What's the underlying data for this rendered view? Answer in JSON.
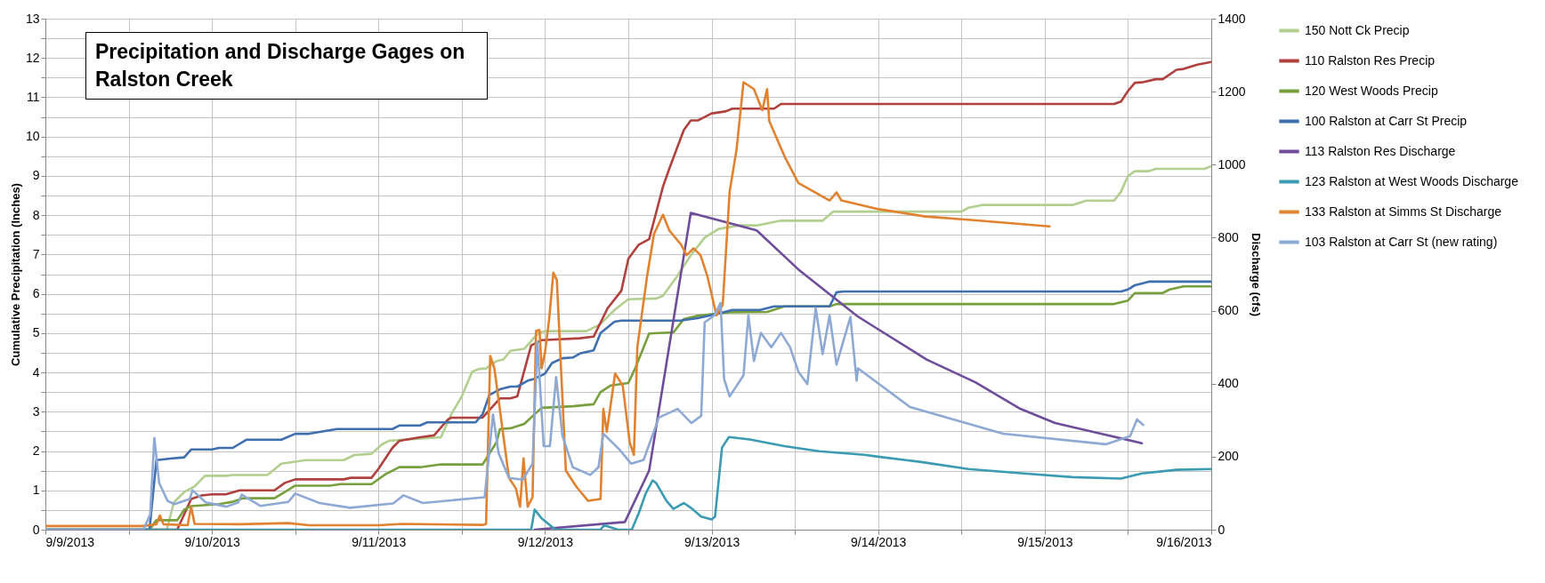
{
  "chart_data": {
    "type": "line",
    "title": "Precipitation and Discharge Gages on Ralston Creek",
    "ylabel": "Cumulative Precipitation (Inches)",
    "y2label": "Discharge (cfs)",
    "xlim": [
      "2013-09-09T00:00",
      "2013-09-16T00:00"
    ],
    "xticks": [
      {
        "value": "2013-09-09T00:00",
        "label": "9/9/2013"
      },
      {
        "value": "2013-09-09T12:00",
        "label": null
      },
      {
        "value": "2013-09-10T00:00",
        "label": "9/10/2013"
      },
      {
        "value": "2013-09-10T12:00",
        "label": null
      },
      {
        "value": "2013-09-11T00:00",
        "label": "9/11/2013"
      },
      {
        "value": "2013-09-11T12:00",
        "label": null
      },
      {
        "value": "2013-09-12T00:00",
        "label": "9/12/2013"
      },
      {
        "value": "2013-09-12T12:00",
        "label": null
      },
      {
        "value": "2013-09-13T00:00",
        "label": "9/13/2013"
      },
      {
        "value": "2013-09-13T12:00",
        "label": null
      },
      {
        "value": "2013-09-14T00:00",
        "label": "9/14/2013"
      },
      {
        "value": "2013-09-14T12:00",
        "label": null
      },
      {
        "value": "2013-09-15T00:00",
        "label": "9/15/2013"
      },
      {
        "value": "2013-09-15T12:00",
        "label": null
      },
      {
        "value": "2013-09-16T00:00",
        "label": "9/16/2013"
      }
    ],
    "ylim": [
      0,
      13
    ],
    "yticks": [
      0,
      {
        "value": 0.5,
        "label": null
      },
      1,
      {
        "value": 1.5,
        "label": null
      },
      2,
      {
        "value": 2.5,
        "label": null
      },
      3,
      {
        "value": 3.5,
        "label": null
      },
      4,
      {
        "value": 4.5,
        "label": null
      },
      5,
      {
        "value": 5.5,
        "label": null
      },
      6,
      {
        "value": 6.5,
        "label": null
      },
      7,
      {
        "value": 7.5,
        "label": null
      },
      8,
      {
        "value": 8.5,
        "label": null
      },
      9,
      {
        "value": 9.5,
        "label": null
      },
      10,
      {
        "value": 10.5,
        "label": null
      },
      11,
      {
        "value": 11.5,
        "label": null
      },
      12,
      {
        "value": 12.5,
        "label": null
      },
      13
    ],
    "y2lim": [
      0,
      1400
    ],
    "y2ticks": [
      0,
      200,
      400,
      600,
      800,
      1000,
      1200,
      1400
    ],
    "grid": true,
    "legend": "right",
    "series": [
      {
        "name": "150 Nott Ck Precip",
        "color": "#b3cf8f",
        "x": [
          "2013-09-09T00:00",
          "2013-09-09T17:30",
          "2013-09-09T18:30",
          "2013-09-09T20:00",
          "2013-09-09T21:30",
          "2013-09-09T23:00",
          "2013-09-10T02:00",
          "2013-09-10T03:00",
          "2013-09-10T08:00",
          "2013-09-10T10:00",
          "2013-09-10T12:00",
          "2013-09-10T13:30",
          "2013-09-10T19:00",
          "2013-09-10T20:30",
          "2013-09-10T23:00",
          "2013-09-11T00:30",
          "2013-09-11T01:30",
          "2013-09-11T09:00",
          "2013-09-11T10:30",
          "2013-09-11T12:00",
          "2013-09-11T13:30",
          "2013-09-11T14:30",
          "2013-09-11T15:30",
          "2013-09-11T17:00",
          "2013-09-11T18:00",
          "2013-09-11T19:00",
          "2013-09-11T21:00",
          "2013-09-11T23:00",
          "2013-09-12T00:00",
          "2013-09-12T06:00",
          "2013-09-12T08:00",
          "2013-09-12T10:00",
          "2013-09-12T12:00",
          "2013-09-12T16:00",
          "2013-09-12T17:00",
          "2013-09-12T19:00",
          "2013-09-12T21:00",
          "2013-09-12T23:00",
          "2013-09-13T01:00",
          "2013-09-13T04:00",
          "2013-09-13T06:30",
          "2013-09-13T10:00",
          "2013-09-13T16:00",
          "2013-09-13T17:30",
          "2013-09-14T12:00",
          "2013-09-14T13:00",
          "2013-09-14T15:00",
          "2013-09-15T04:00",
          "2013-09-15T06:00",
          "2013-09-15T10:00",
          "2013-09-15T11:00",
          "2013-09-15T12:00",
          "2013-09-15T13:00",
          "2013-09-15T15:00",
          "2013-09-15T16:00",
          "2013-09-15T23:00",
          "2013-09-16T00:00"
        ],
        "values": [
          0,
          0,
          0.69,
          0.96,
          1.1,
          1.37,
          1.37,
          1.39,
          1.39,
          1.68,
          1.73,
          1.77,
          1.77,
          1.9,
          1.93,
          2.17,
          2.26,
          2.35,
          2.94,
          3.39,
          4.02,
          4.09,
          4.1,
          4.29,
          4.33,
          4.55,
          4.6,
          5.0,
          5.05,
          5.05,
          5.23,
          5.59,
          5.86,
          5.88,
          5.95,
          6.44,
          6.98,
          7.43,
          7.65,
          7.74,
          7.74,
          7.86,
          7.86,
          8.09,
          8.09,
          8.19,
          8.26,
          8.26,
          8.37,
          8.37,
          8.6,
          9.0,
          9.12,
          9.12,
          9.18,
          9.18,
          9.25
        ]
      },
      {
        "name": "110 Ralston Res Precip",
        "color": "#b0413e",
        "x": [
          "2013-09-09T00:00",
          "2013-09-09T19:00",
          "2013-09-09T21:00",
          "2013-09-09T22:30",
          "2013-09-10T00:00",
          "2013-09-10T02:00",
          "2013-09-10T04:00",
          "2013-09-10T09:00",
          "2013-09-10T10:30",
          "2013-09-10T12:00",
          "2013-09-10T19:00",
          "2013-09-10T20:00",
          "2013-09-10T23:00",
          "2013-09-11T00:00",
          "2013-09-11T02:00",
          "2013-09-11T03:00",
          "2013-09-11T06:00",
          "2013-09-11T08:00",
          "2013-09-11T10:00",
          "2013-09-11T10:30",
          "2013-09-11T15:00",
          "2013-09-11T17:30",
          "2013-09-11T19:00",
          "2013-09-11T20:00",
          "2013-09-11T22:00",
          "2013-09-11T23:30",
          "2013-09-12T05:00",
          "2013-09-12T07:00",
          "2013-09-12T09:00",
          "2013-09-12T11:00",
          "2013-09-12T12:00",
          "2013-09-12T13:30",
          "2013-09-12T15:00",
          "2013-09-12T17:00",
          "2013-09-12T18:00",
          "2013-09-12T20:00",
          "2013-09-12T21:00",
          "2013-09-12T22:00",
          "2013-09-13T00:00",
          "2013-09-13T02:00",
          "2013-09-13T03:00",
          "2013-09-13T09:00",
          "2013-09-13T10:00",
          "2013-09-15T10:00",
          "2013-09-15T11:00",
          "2013-09-15T12:00",
          "2013-09-15T13:00",
          "2013-09-15T14:00",
          "2013-09-15T16:00",
          "2013-09-15T17:00",
          "2013-09-15T19:00",
          "2013-09-15T20:00",
          "2013-09-15T22:00",
          "2013-09-16T00:00"
        ],
        "values": [
          0,
          0,
          0.78,
          0.87,
          0.9,
          0.9,
          1.0,
          1.0,
          1.19,
          1.28,
          1.28,
          1.32,
          1.32,
          1.55,
          2.08,
          2.26,
          2.35,
          2.4,
          2.8,
          2.85,
          2.85,
          3.34,
          3.34,
          3.39,
          4.69,
          4.82,
          4.87,
          4.91,
          5.63,
          6.08,
          6.89,
          7.25,
          7.39,
          8.73,
          9.23,
          10.17,
          10.41,
          10.41,
          10.59,
          10.64,
          10.71,
          10.71,
          10.83,
          10.83,
          10.89,
          11.16,
          11.37,
          11.38,
          11.46,
          11.46,
          11.7,
          11.72,
          11.83,
          11.9
        ]
      },
      {
        "name": "120 West Woods Precip",
        "color": "#77a03c",
        "x": [
          "2013-09-09T00:00",
          "2013-09-09T15:00",
          "2013-09-09T16:00",
          "2013-09-09T19:00",
          "2013-09-09T20:00",
          "2013-09-09T21:00",
          "2013-09-10T01:00",
          "2013-09-10T03:00",
          "2013-09-10T04:30",
          "2013-09-10T09:00",
          "2013-09-10T10:30",
          "2013-09-10T12:00",
          "2013-09-10T17:00",
          "2013-09-10T18:30",
          "2013-09-10T23:00",
          "2013-09-11T01:00",
          "2013-09-11T03:00",
          "2013-09-11T06:00",
          "2013-09-11T09:00",
          "2013-09-11T15:00",
          "2013-09-11T17:00",
          "2013-09-11T17:30",
          "2013-09-11T19:00",
          "2013-09-11T21:00",
          "2013-09-11T23:30",
          "2013-09-12T04:00",
          "2013-09-12T07:00",
          "2013-09-12T08:00",
          "2013-09-12T09:30",
          "2013-09-12T12:00",
          "2013-09-12T13:00",
          "2013-09-12T15:00",
          "2013-09-12T18:30",
          "2013-09-12T20:00",
          "2013-09-12T22:00",
          "2013-09-13T02:30",
          "2013-09-13T08:00",
          "2013-09-13T10:30",
          "2013-09-13T17:00",
          "2013-09-13T18:00",
          "2013-09-15T10:00",
          "2013-09-15T12:00",
          "2013-09-15T13:00",
          "2013-09-15T17:00",
          "2013-09-15T18:00",
          "2013-09-15T20:00",
          "2013-09-16T00:00"
        ],
        "values": [
          0,
          0,
          0.24,
          0.24,
          0.51,
          0.6,
          0.65,
          0.71,
          0.8,
          0.8,
          0.96,
          1.12,
          1.12,
          1.16,
          1.16,
          1.41,
          1.59,
          1.59,
          1.66,
          1.66,
          2.22,
          2.56,
          2.58,
          2.69,
          3.1,
          3.14,
          3.19,
          3.5,
          3.67,
          3.73,
          4.11,
          4.99,
          5.02,
          5.36,
          5.44,
          5.53,
          5.54,
          5.68,
          5.68,
          5.74,
          5.74,
          5.83,
          6.02,
          6.02,
          6.11,
          6.19,
          6.19
        ]
      },
      {
        "name": "100 Ralston at Carr St Precip",
        "color": "#3f6fae",
        "x": [
          "2013-09-09T00:00",
          "2013-09-09T15:00",
          "2013-09-09T16:00",
          "2013-09-09T18:00",
          "2013-09-09T20:00",
          "2013-09-09T21:00",
          "2013-09-10T00:00",
          "2013-09-10T01:00",
          "2013-09-10T03:00",
          "2013-09-10T05:00",
          "2013-09-10T10:00",
          "2013-09-10T12:00",
          "2013-09-10T14:00",
          "2013-09-10T18:00",
          "2013-09-11T02:00",
          "2013-09-11T03:00",
          "2013-09-11T06:00",
          "2013-09-11T07:00",
          "2013-09-11T14:00",
          "2013-09-11T15:00",
          "2013-09-11T16:00",
          "2013-09-11T17:30",
          "2013-09-11T19:00",
          "2013-09-11T20:00",
          "2013-09-11T21:30",
          "2013-09-11T22:30",
          "2013-09-12T00:00",
          "2013-09-12T01:00",
          "2013-09-12T02:30",
          "2013-09-12T04:00",
          "2013-09-12T05:00",
          "2013-09-12T07:00",
          "2013-09-12T08:00",
          "2013-09-12T10:00",
          "2013-09-12T11:00",
          "2013-09-12T19:30",
          "2013-09-12T22:00",
          "2013-09-13T01:00",
          "2013-09-13T03:00",
          "2013-09-13T07:00",
          "2013-09-13T09:00",
          "2013-09-13T17:00",
          "2013-09-13T18:00",
          "2013-09-13T19:00",
          "2013-09-15T11:00",
          "2013-09-15T12:00",
          "2013-09-15T13:00",
          "2013-09-15T15:00",
          "2013-09-16T00:00"
        ],
        "values": [
          0,
          0,
          1.77,
          1.81,
          1.84,
          2.04,
          2.04,
          2.08,
          2.08,
          2.29,
          2.29,
          2.44,
          2.44,
          2.56,
          2.56,
          2.65,
          2.65,
          2.73,
          2.73,
          2.94,
          3.43,
          3.57,
          3.64,
          3.64,
          3.79,
          3.84,
          3.97,
          4.24,
          4.36,
          4.38,
          4.48,
          4.56,
          5.0,
          5.29,
          5.32,
          5.32,
          5.38,
          5.5,
          5.59,
          5.59,
          5.68,
          5.68,
          6.04,
          6.06,
          6.06,
          6.11,
          6.22,
          6.31,
          6.31
        ]
      },
      {
        "name": "113 Ralston Res Discharge",
        "color": "#6f4d9b",
        "axis": "y2",
        "x": [
          "2013-09-11T22:30",
          "2013-09-12T11:30",
          "2013-09-12T15:00",
          "2013-09-12T21:00",
          "2013-09-13T06:30",
          "2013-09-13T12:30",
          "2013-09-13T21:00",
          "2013-09-14T00:00",
          "2013-09-14T07:00",
          "2013-09-14T14:00",
          "2013-09-14T20:30",
          "2013-09-15T01:30",
          "2013-09-15T07:00",
          "2013-09-15T14:00"
        ],
        "values": [
          0,
          21,
          162,
          868,
          820,
          713,
          585,
          549,
          466,
          404,
          331,
          292,
          268,
          237
        ]
      },
      {
        "name": "123 Ralston at West Woods Discharge",
        "color": "#3a9bb2",
        "axis": "y2",
        "x": [
          "2013-09-09T00:00",
          "2013-09-11T22:00",
          "2013-09-11T22:30",
          "2013-09-11T23:30",
          "2013-09-12T01:30",
          "2013-09-12T08:00",
          "2013-09-12T08:30",
          "2013-09-12T10:30",
          "2013-09-12T12:30",
          "2013-09-12T13:30",
          "2013-09-12T14:30",
          "2013-09-12T15:30",
          "2013-09-12T16:00",
          "2013-09-12T17:30",
          "2013-09-12T18:30",
          "2013-09-12T20:00",
          "2013-09-12T21:00",
          "2013-09-12T22:30",
          "2013-09-13T00:00",
          "2013-09-13T00:30",
          "2013-09-13T01:30",
          "2013-09-13T02:30",
          "2013-09-13T05:30",
          "2013-09-13T10:30",
          "2013-09-13T15:30",
          "2013-09-13T22:00",
          "2013-09-14T00:00",
          "2013-09-14T06:00",
          "2013-09-14T13:00",
          "2013-09-14T21:00",
          "2013-09-15T04:00",
          "2013-09-15T11:00",
          "2013-09-15T14:00",
          "2013-09-15T19:00",
          "2013-09-16T00:00"
        ],
        "values": [
          0,
          0,
          55,
          31,
          0,
          0,
          12,
          0,
          0,
          45,
          99,
          135,
          128,
          79,
          57,
          73,
          60,
          36,
          28,
          36,
          225,
          254,
          247,
          229,
          215,
          205,
          200,
          186,
          166,
          154,
          144,
          140,
          154,
          164,
          166
        ]
      },
      {
        "name": "133 Ralston at Simms St Discharge",
        "color": "#e0822f",
        "axis": "y2",
        "x": [
          "2013-09-09T00:00",
          "2013-09-09T14:00",
          "2013-09-09T16:00",
          "2013-09-09T16:30",
          "2013-09-09T17:00",
          "2013-09-09T20:30",
          "2013-09-09T21:00",
          "2013-09-09T21:30",
          "2013-09-10T04:00",
          "2013-09-10T11:00",
          "2013-09-10T14:00",
          "2013-09-11T00:00",
          "2013-09-11T03:30",
          "2013-09-11T15:00",
          "2013-09-11T15:30",
          "2013-09-11T16:06",
          "2013-09-11T16:42",
          "2013-09-11T18:48",
          "2013-09-11T19:48",
          "2013-09-11T20:24",
          "2013-09-11T20:54",
          "2013-09-11T21:30",
          "2013-09-11T22:12",
          "2013-09-11T22:42",
          "2013-09-11T23:12",
          "2013-09-11T23:30",
          "2013-09-12T00:00",
          "2013-09-12T00:36",
          "2013-09-12T01:12",
          "2013-09-12T01:42",
          "2013-09-12T03:00",
          "2013-09-12T04:30",
          "2013-09-12T06:12",
          "2013-09-12T08:00",
          "2013-09-12T08:24",
          "2013-09-12T08:54",
          "2013-09-12T10:06",
          "2013-09-12T11:12",
          "2013-09-12T12:12",
          "2013-09-12T12:48",
          "2013-09-12T13:18",
          "2013-09-12T14:42",
          "2013-09-12T15:42",
          "2013-09-12T17:00",
          "2013-09-12T17:54",
          "2013-09-12T19:36",
          "2013-09-12T20:24",
          "2013-09-12T21:24",
          "2013-09-12T22:24",
          "2013-09-12T23:24",
          "2013-09-13T00:42",
          "2013-09-13T01:36",
          "2013-09-13T02:36",
          "2013-09-13T03:36",
          "2013-09-13T04:36",
          "2013-09-13T06:06",
          "2013-09-13T07:18",
          "2013-09-13T08:00",
          "2013-09-13T08:18",
          "2013-09-13T10:30",
          "2013-09-13T12:30",
          "2013-09-13T17:00",
          "2013-09-13T18:00",
          "2013-09-13T18:42",
          "2013-09-14T00:06",
          "2013-09-14T06:48",
          "2013-09-14T13:00",
          "2013-09-15T00:42"
        ],
        "values": [
          10,
          10,
          15,
          39,
          15,
          12,
          63,
          16,
          15,
          18,
          12,
          12,
          16,
          13,
          15,
          476,
          442,
          142,
          113,
          63,
          195,
          63,
          89,
          544,
          547,
          442,
          486,
          578,
          704,
          684,
          162,
          118,
          79,
          84,
          331,
          268,
          428,
          394,
          239,
          205,
          500,
          694,
          810,
          863,
          820,
          781,
          752,
          771,
          752,
          694,
          587,
          616,
          926,
          1042,
          1226,
          1207,
          1149,
          1207,
          1120,
          1023,
          950,
          902,
          924,
          902,
          878,
          858,
          849,
          831
        ]
      },
      {
        "name": "103 Ralston at Carr St (new rating)",
        "color": "#8ea9d4",
        "axis": "y2",
        "x": [
          "2013-09-09T00:00",
          "2013-09-09T14:06",
          "2013-09-09T15:06",
          "2013-09-09T15:42",
          "2013-09-09T16:24",
          "2013-09-09T17:36",
          "2013-09-09T18:36",
          "2013-09-09T20:48",
          "2013-09-09T21:12",
          "2013-09-09T23:06",
          "2013-09-10T02:06",
          "2013-09-10T03:48",
          "2013-09-10T04:18",
          "2013-09-10T07:00",
          "2013-09-10T11:00",
          "2013-09-10T12:00",
          "2013-09-10T15:30",
          "2013-09-10T19:54",
          "2013-09-11T02:06",
          "2013-09-11T03:36",
          "2013-09-11T06:24",
          "2013-09-11T15:18",
          "2013-09-11T16:30",
          "2013-09-11T17:18",
          "2013-09-11T18:48",
          "2013-09-11T20:48",
          "2013-09-11T22:12",
          "2013-09-11T22:54",
          "2013-09-11T23:48",
          "2013-09-12T00:42",
          "2013-09-12T01:36",
          "2013-09-12T02:30",
          "2013-09-12T04:00",
          "2013-09-12T06:30",
          "2013-09-12T07:42",
          "2013-09-12T08:24",
          "2013-09-12T10:42",
          "2013-09-12T12:24",
          "2013-09-12T14:12",
          "2013-09-12T16:24",
          "2013-09-12T19:06",
          "2013-09-12T21:06",
          "2013-09-12T22:30",
          "2013-09-12T23:00",
          "2013-09-13T00:24",
          "2013-09-13T01:18",
          "2013-09-13T01:48",
          "2013-09-13T02:36",
          "2013-09-13T04:36",
          "2013-09-13T05:18",
          "2013-09-13T06:06",
          "2013-09-13T07:06",
          "2013-09-13T08:36",
          "2013-09-13T10:00",
          "2013-09-13T11:18",
          "2013-09-13T12:30",
          "2013-09-13T13:48",
          "2013-09-13T15:00",
          "2013-09-13T16:00",
          "2013-09-13T17:00",
          "2013-09-13T18:00",
          "2013-09-13T20:00",
          "2013-09-13T20:54",
          "2013-09-13T21:06",
          "2013-09-14T04:36",
          "2013-09-14T18:00",
          "2013-09-15T08:48",
          "2013-09-15T12:18",
          "2013-09-15T13:18",
          "2013-09-15T14:12"
        ],
        "values": [
          0,
          0,
          41,
          251,
          128,
          79,
          70,
          84,
          108,
          75,
          63,
          75,
          96,
          65,
          76,
          99,
          73,
          60,
          72,
          94,
          73,
          89,
          316,
          210,
          142,
          137,
          181,
          515,
          229,
          229,
          418,
          258,
          171,
          150,
          171,
          263,
          220,
          181,
          191,
          307,
          331,
          292,
          312,
          568,
          587,
          621,
          413,
          365,
          423,
          587,
          462,
          539,
          500,
          539,
          500,
          433,
          399,
          607,
          481,
          587,
          452,
          583,
          408,
          442,
          336,
          263,
          234,
          256,
          302,
          287
        ]
      }
    ]
  }
}
